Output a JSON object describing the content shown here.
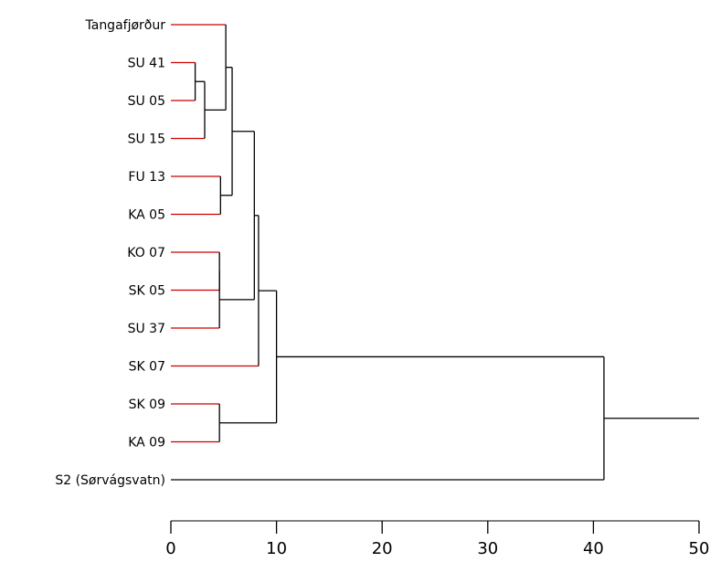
{
  "chart_data": {
    "type": "dendrogram",
    "orientation": "horizontal",
    "leaves": [
      "Tangafjørður",
      "SU 41",
      "SU 05",
      "SU 15",
      "FU 13",
      "KA 05",
      "KO 07",
      "SK 05",
      "SU 37",
      "SK 07",
      "SK 09",
      "KA 09",
      "S2 (Sørvágsvatn)"
    ],
    "merges": [
      {
        "a": "SU 41",
        "b": "SU 05",
        "height": 2.3
      },
      {
        "a": "m0",
        "b": "SU 15",
        "height": 3.2
      },
      {
        "a": "Tangafjørður",
        "b": "m1",
        "height": 5.2
      },
      {
        "a": "FU 13",
        "b": "KA 05",
        "height": 4.7
      },
      {
        "a": "m2",
        "b": "m3",
        "height": 5.8
      },
      {
        "a": "KO 07",
        "b": "SK 05",
        "height": 4.6
      },
      {
        "a": "m5",
        "b": "SU 37",
        "height": 4.6
      },
      {
        "a": "m4",
        "b": "m6",
        "height": 7.9
      },
      {
        "a": "m7",
        "b": "SK 07",
        "height": 8.3
      },
      {
        "a": "SK 09",
        "b": "KA 09",
        "height": 4.6
      },
      {
        "a": "m8",
        "b": "m9",
        "height": 10.0
      },
      {
        "a": "m10",
        "b": "S2 (Sørvágsvatn)",
        "height": 41.0
      }
    ],
    "root_height": 50,
    "xlim": [
      0,
      50
    ],
    "xticks": [
      0,
      10,
      20,
      30,
      40,
      50
    ],
    "xtick_labels": [
      "0",
      "10",
      "20",
      "30",
      "40",
      "50"
    ],
    "leaf_line_color": "#cc0000",
    "red_leaves": [
      "Tangafjørður",
      "SU 41",
      "SU 05",
      "SU 15",
      "FU 13",
      "KA 05",
      "KO 07",
      "SK 05",
      "SU 37",
      "SK 07",
      "SK 09",
      "KA 09"
    ],
    "line_color": "#000000",
    "title": "",
    "xlabel": "",
    "ylabel": ""
  }
}
